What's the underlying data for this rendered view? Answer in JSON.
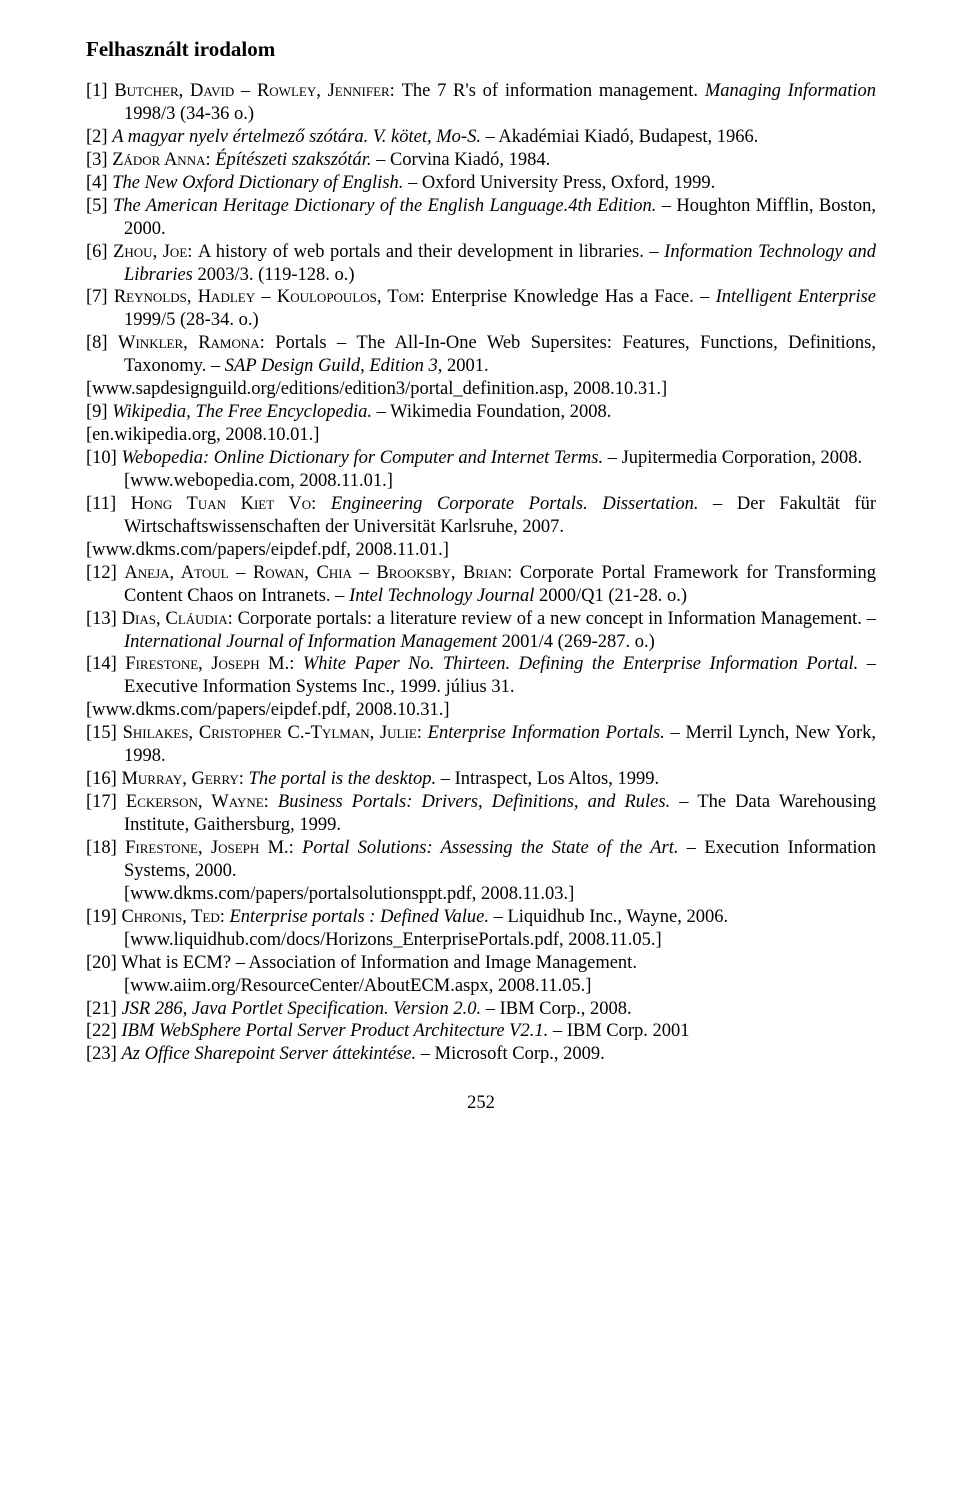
{
  "heading": "Felhasznált irodalom",
  "page_number": "252",
  "refs": [
    {
      "num": "[1]",
      "authors": "Butcher, David – Rowley, Jennifer: ",
      "title": "The 7 R's of information management. ",
      "title_italic": false,
      "src": "Managing Information",
      "src_italic": true,
      "tail": " 1998/3 (34-36 o.)"
    },
    {
      "num": "[2]",
      "authors": "",
      "title": "A magyar nyelv értelmező szótára. V. kötet, Mo-S.",
      "title_italic": true,
      "src": "",
      "src_italic": false,
      "tail": " – Akadémiai Kiadó, Budapest, 1966."
    },
    {
      "num": "[3]",
      "authors": "Zádor Anna: ",
      "title": "Építészeti szakszótár.",
      "title_italic": true,
      "src": "",
      "src_italic": false,
      "tail": " – Corvina Kiadó, 1984."
    },
    {
      "num": "[4]",
      "authors": "",
      "title": "The New Oxford Dictionary of English.",
      "title_italic": true,
      "src": "",
      "src_italic": false,
      "tail": " – Oxford University Press, Oxford, 1999."
    },
    {
      "num": "[5]",
      "authors": "",
      "title": "The American Heritage Dictionary of the English Language.4th Edition.",
      "title_italic": true,
      "src": "",
      "src_italic": false,
      "tail": " – Houghton Mifflin, Boston, 2000."
    },
    {
      "num": "[6]",
      "authors": "Zhou, Joe: ",
      "title": "A history of web portals and their development in libraries. – ",
      "title_italic": false,
      "src": "Information Technology and Libraries",
      "src_italic": true,
      "tail": " 2003/3. (119-128. o.)"
    },
    {
      "num": "[7]",
      "authors": "Reynolds, Hadley – Koulopoulos, Tom: ",
      "title": "Enterprise Knowledge Has a Face. – ",
      "title_italic": false,
      "src": "Intelligent Enterprise",
      "src_italic": true,
      "tail": " 1999/5 (28-34. o.)"
    },
    {
      "num": "[8]",
      "authors": "Winkler, Ramona: ",
      "title": "Portals – The All-In-One Web Supersites: Features, Functions, Definitions, Taxonomy. – ",
      "title_italic": false,
      "src": "SAP Design Guild, Edition 3",
      "src_italic": true,
      "tail": ", 2001."
    },
    {
      "url": "[www.sapdesignguild.org/editions/edition3/portal_definition.asp, 2008.10.31.]"
    },
    {
      "num": "[9]",
      "authors": "",
      "title": "Wikipedia, The Free Encyclopedia.",
      "title_italic": true,
      "src": "",
      "src_italic": false,
      "tail": " – Wikimedia Foundation, 2008."
    },
    {
      "url": "[en.wikipedia.org, 2008.10.01.]"
    },
    {
      "num": "[10]",
      "authors": "",
      "title": "Webopedia: Online Dictionary for Computer and Internet Terms.",
      "title_italic": true,
      "src": "",
      "src_italic": false,
      "tail": " – Jupitermedia Corporation, 2008."
    },
    {
      "url2": "[www.webopedia.com, 2008.11.01.]"
    },
    {
      "num": "[11]",
      "authors": "Hong Tuan Kiet Vo: ",
      "title": "Engineering Corporate Portals. Dissertation.",
      "title_italic": true,
      "src": "",
      "src_italic": false,
      "tail": " – Der Fakultät für Wirtschaftswissenschaften der Universität Karlsruhe, 2007."
    },
    {
      "url": "[www.dkms.com/papers/eipdef.pdf, 2008.11.01.]"
    },
    {
      "num": "[12]",
      "authors": "Aneja, Atoul – Rowan, Chia – Brooksby, Brian: ",
      "title": "Corporate Portal Framework for Transforming Content Chaos on Intranets. – ",
      "title_italic": false,
      "src": "Intel Technology Journal",
      "src_italic": true,
      "tail": " 2000/Q1 (21-28. o.)"
    },
    {
      "num": "[13]",
      "authors": "Dias, Cláudia: ",
      "title": "Corporate portals: a literature review of a new concept in Information Management. – ",
      "title_italic": false,
      "src": "International Journal of Information Management",
      "src_italic": true,
      "tail": " 2001/4 (269-287. o.)"
    },
    {
      "num": "[14]",
      "authors": "Firestone, Joseph M.: ",
      "title": "White Paper No. Thirteen. Defining the Enterprise Information Portal.",
      "title_italic": true,
      "src": "",
      "src_italic": false,
      "tail": " – Executive Information Systems Inc., 1999. július 31."
    },
    {
      "url": "[www.dkms.com/papers/eipdef.pdf, 2008.10.31.]"
    },
    {
      "num": "[15]",
      "authors": "Shilakes, Cristopher C.-Tylman, Julie: ",
      "title": "Enterprise Information Portals.",
      "title_italic": true,
      "src": "",
      "src_italic": false,
      "tail": " – Merril Lynch, New York, 1998."
    },
    {
      "num": "[16]",
      "authors": "Murray, Gerry: ",
      "title": "The portal is the desktop.",
      "title_italic": true,
      "src": "",
      "src_italic": false,
      "tail": " – Intraspect, Los Altos, 1999."
    },
    {
      "num": "[17]",
      "authors": "Eckerson, Wayne: ",
      "title": "Business Portals: Drivers, Definitions, and Rules.",
      "title_italic": true,
      "src": "",
      "src_italic": false,
      "tail": " – The Data Warehousing Institute, Gaithersburg, 1999."
    },
    {
      "num": "[18]",
      "authors": "Firestone, Joseph M.: ",
      "title": "Portal Solutions: Assessing the State of the Art.",
      "title_italic": true,
      "src": "",
      "src_italic": false,
      "tail": " – Execution Information Systems, 2000."
    },
    {
      "url2": "[www.dkms.com/papers/portalsolutionsppt.pdf, 2008.11.03.]"
    },
    {
      "num": "[19]",
      "authors": "Chronis, Ted: ",
      "title": "Enterprise portals : Defined Value.",
      "title_italic": true,
      "src": "",
      "src_italic": false,
      "tail": " – Liquidhub Inc., Wayne, 2006."
    },
    {
      "url2": "[www.liquidhub.com/docs/Horizons_EnterprisePortals.pdf, 2008.11.05.]"
    },
    {
      "num": "[20]",
      "authors": "",
      "title": "What is ECM? – Association of Information and Image Management.",
      "title_italic": false,
      "src": "",
      "src_italic": false,
      "tail": ""
    },
    {
      "url2": "[www.aiim.org/ResourceCenter/AboutECM.aspx, 2008.11.05.]"
    },
    {
      "num": "[21]",
      "authors": "",
      "title": "JSR 286, Java Portlet Specification. Version 2.0.",
      "title_italic": true,
      "src": "",
      "src_italic": false,
      "tail": " – IBM Corp., 2008."
    },
    {
      "num": "[22]",
      "authors": "",
      "title": "IBM WebSphere Portal Server Product Architecture V2.1.",
      "title_italic": true,
      "src": "",
      "src_italic": false,
      "tail": " – IBM Corp. 2001"
    },
    {
      "num": "[23]",
      "authors": "",
      "title": "Az Office Sharepoint Server áttekintése.",
      "title_italic": true,
      "src": "",
      "src_italic": false,
      "tail": " – Microsoft Corp., 2009."
    }
  ]
}
